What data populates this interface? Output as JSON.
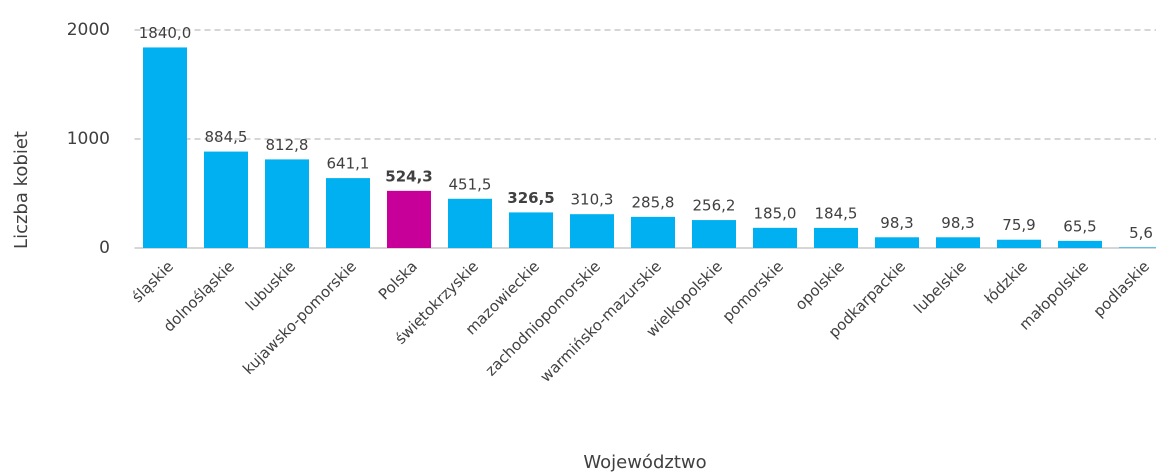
{
  "chart_data": {
    "type": "bar",
    "x_label": "Województwo",
    "y_label": "Liczba kobiet",
    "categories": [
      "śląskie",
      "dolnośląskie",
      "lubuskie",
      "kujawsko-pomorskie",
      "Polska",
      "świętokrzyskie",
      "mazowieckie",
      "zachodniopomorskie",
      "warmińsko-mazurskie",
      "wielkopolskie",
      "pomorskie",
      "opolskie",
      "podkarpackie",
      "lubelskie",
      "łódzkie",
      "małopolskie",
      "podlaskie"
    ],
    "values": [
      1840.0,
      884.5,
      812.8,
      641.1,
      524.3,
      451.5,
      326.5,
      310.3,
      285.8,
      256.2,
      185.0,
      184.5,
      98.3,
      98.3,
      75.9,
      65.5,
      5.6
    ],
    "value_labels": [
      "1840,0",
      "884,5",
      "812,8",
      "641,1",
      "524,3",
      "451,5",
      "326,5",
      "310,3",
      "285,8",
      "256,2",
      "185,0",
      "184,5",
      "98,3",
      "98,3",
      "75,9",
      "65,5",
      "5,6"
    ],
    "colors": [
      "#00b0f0",
      "#00b0f0",
      "#00b0f0",
      "#00b0f0",
      "#c8009a",
      "#00b0f0",
      "#00b0f0",
      "#00b0f0",
      "#00b0f0",
      "#00b0f0",
      "#00b0f0",
      "#00b0f0",
      "#00b0f0",
      "#00b0f0",
      "#00b0f0",
      "#00b0f0",
      "#00b0f0"
    ],
    "value_label_weights": [
      "normal",
      "normal",
      "normal",
      "normal",
      "bold",
      "normal",
      "bold",
      "normal",
      "normal",
      "normal",
      "normal",
      "normal",
      "normal",
      "normal",
      "normal",
      "normal",
      "normal"
    ],
    "ylim": [
      0,
      2000
    ],
    "yticks": [
      0,
      1000,
      2000
    ],
    "grid": true
  }
}
